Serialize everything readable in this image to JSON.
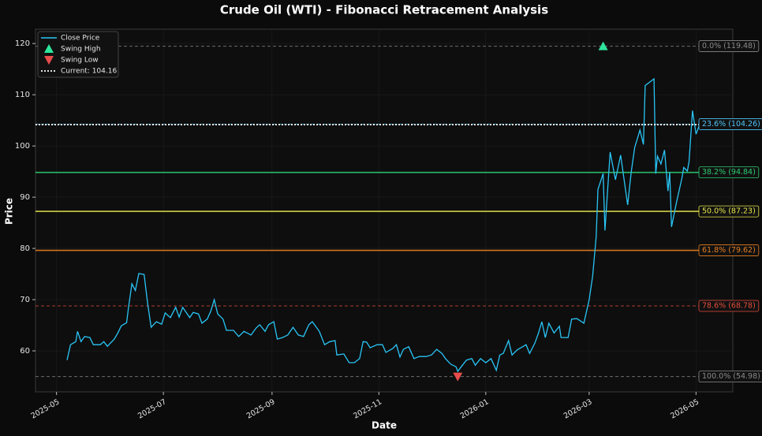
{
  "chart_data": {
    "type": "line",
    "title": "Crude Oil (WTI) - Fibonacci Retracement Analysis",
    "x_label": "Date",
    "y_label": "Price",
    "x": [
      "2025-05-07",
      "2025-05-09",
      "2025-05-12",
      "2025-05-13",
      "2025-05-15",
      "2025-05-17",
      "2025-05-20",
      "2025-05-22",
      "2025-05-26",
      "2025-05-28",
      "2025-05-30",
      "2025-06-03",
      "2025-06-05",
      "2025-06-07",
      "2025-06-10",
      "2025-06-11",
      "2025-06-13",
      "2025-06-15",
      "2025-06-17",
      "2025-06-20",
      "2025-06-22",
      "2025-06-24",
      "2025-06-27",
      "2025-06-30",
      "2025-07-02",
      "2025-07-05",
      "2025-07-08",
      "2025-07-10",
      "2025-07-12",
      "2025-07-16",
      "2025-07-18",
      "2025-07-21",
      "2025-07-23",
      "2025-07-26",
      "2025-07-28",
      "2025-07-30",
      "2025-08-01",
      "2025-08-04",
      "2025-08-06",
      "2025-08-10",
      "2025-08-13",
      "2025-08-16",
      "2025-08-20",
      "2025-08-23",
      "2025-08-25",
      "2025-08-28",
      "2025-08-30",
      "2025-09-02",
      "2025-09-04",
      "2025-09-07",
      "2025-09-10",
      "2025-09-13",
      "2025-09-16",
      "2025-09-19",
      "2025-09-22",
      "2025-09-24",
      "2025-09-28",
      "2025-10-01",
      "2025-10-04",
      "2025-10-07",
      "2025-10-08",
      "2025-10-12",
      "2025-10-15",
      "2025-10-18",
      "2025-10-21",
      "2025-10-23",
      "2025-10-25",
      "2025-10-27",
      "2025-10-31",
      "2025-11-03",
      "2025-11-05",
      "2025-11-09",
      "2025-11-11",
      "2025-11-13",
      "2025-11-15",
      "2025-11-18",
      "2025-11-21",
      "2025-11-24",
      "2025-11-28",
      "2025-12-01",
      "2025-12-04",
      "2025-12-07",
      "2025-12-09",
      "2025-12-12",
      "2025-12-15",
      "2025-12-16",
      "2025-12-18",
      "2025-12-21",
      "2025-12-24",
      "2025-12-26",
      "2025-12-29",
      "2026-01-01",
      "2026-01-04",
      "2026-01-07",
      "2026-01-09",
      "2026-01-11",
      "2026-01-14",
      "2026-01-16",
      "2026-01-19",
      "2026-01-22",
      "2026-01-24",
      "2026-01-26",
      "2026-01-29",
      "2026-01-31",
      "2026-02-02",
      "2026-02-04",
      "2026-02-06",
      "2026-02-09",
      "2026-02-12",
      "2026-02-13",
      "2026-02-17",
      "2026-02-19",
      "2026-02-22",
      "2026-02-26",
      "2026-03-01",
      "2026-03-03",
      "2026-03-05",
      "2026-03-06",
      "2026-03-09",
      "2026-03-10",
      "2026-03-13",
      "2026-03-16",
      "2026-03-19",
      "2026-03-23",
      "2026-03-25",
      "2026-03-27",
      "2026-03-30",
      "2026-04-01",
      "2026-04-02",
      "2026-04-07",
      "2026-04-08",
      "2026-04-09",
      "2026-04-11",
      "2026-04-13",
      "2026-04-15",
      "2026-04-16",
      "2026-04-17",
      "2026-04-20",
      "2026-04-23",
      "2026-04-24",
      "2026-04-26",
      "2026-04-27",
      "2026-04-29",
      "2026-05-01",
      "2026-05-03"
    ],
    "series": [
      {
        "name": "Close Price",
        "color": "#29c5f6",
        "values": [
          58.2,
          61.2,
          61.8,
          63.8,
          61.8,
          62.8,
          62.6,
          61.2,
          61.2,
          61.8,
          60.9,
          62.3,
          63.5,
          64.9,
          65.5,
          68.2,
          73.1,
          71.8,
          75.1,
          74.9,
          69.2,
          64.6,
          65.7,
          65.2,
          67.4,
          66.5,
          68.5,
          66.6,
          68.5,
          66.5,
          67.5,
          67.2,
          65.4,
          66.2,
          67.7,
          70.0,
          67.2,
          66.2,
          64.0,
          64.0,
          62.8,
          63.8,
          63.1,
          64.5,
          65.1,
          63.8,
          65.1,
          65.7,
          62.3,
          62.6,
          63.1,
          64.6,
          63.1,
          62.8,
          65.1,
          65.7,
          63.8,
          61.2,
          61.8,
          62.0,
          59.2,
          59.4,
          57.7,
          57.7,
          58.5,
          61.8,
          61.7,
          60.6,
          61.2,
          61.2,
          59.7,
          60.5,
          61.2,
          58.8,
          60.3,
          60.8,
          58.5,
          58.9,
          58.9,
          59.2,
          60.3,
          59.5,
          58.5,
          57.4,
          56.9,
          56.0,
          56.9,
          58.2,
          58.5,
          57.2,
          58.5,
          57.7,
          58.5,
          56.2,
          59.2,
          59.5,
          62.0,
          59.2,
          60.2,
          60.8,
          61.2,
          59.5,
          61.5,
          63.4,
          65.7,
          62.6,
          65.4,
          63.5,
          64.8,
          62.6,
          62.6,
          66.2,
          66.3,
          65.4,
          70.0,
          74.6,
          82.3,
          91.5,
          94.6,
          83.5,
          98.8,
          93.4,
          98.2,
          88.5,
          94.9,
          99.7,
          103.1,
          100.3,
          111.8,
          113.1,
          94.6,
          98.0,
          96.5,
          99.2,
          91.2,
          94.9,
          84.2,
          89.2,
          93.8,
          95.8,
          95.1,
          96.9,
          106.9,
          102.3,
          104.16
        ]
      }
    ],
    "markers": [
      {
        "name": "Swing High",
        "x": "2026-03-09",
        "value": 119.48,
        "color": "#2ee59d",
        "symbol": "triangle-up"
      },
      {
        "name": "Swing Low",
        "x": "2025-12-16",
        "value": 54.98,
        "color": "#e74c4c",
        "symbol": "triangle-down"
      }
    ],
    "current": {
      "name": "Current: 104.16",
      "value": 104.16,
      "color": "#ffffff"
    },
    "levels": [
      {
        "label": "0.0% (119.48)",
        "value": 119.48,
        "color": "#8a8a8a",
        "dashed": true
      },
      {
        "label": "23.6% (104.26)",
        "value": 104.26,
        "color": "#4fc3f7",
        "dashed": true
      },
      {
        "label": "38.2% (94.84)",
        "value": 94.84,
        "color": "#2ecc71",
        "dashed": false
      },
      {
        "label": "50.0% (87.23)",
        "value": 87.23,
        "color": "#e5e54a",
        "dashed": false
      },
      {
        "label": "61.8% (79.62)",
        "value": 79.62,
        "color": "#e67e22",
        "dashed": false
      },
      {
        "label": "78.6% (68.78)",
        "value": 68.78,
        "color": "#e74c3c",
        "dashed": true
      },
      {
        "label": "100.0% (54.98)",
        "value": 54.98,
        "color": "#8a8a8a",
        "dashed": true
      }
    ],
    "xlim": [
      "2025-04-19",
      "2026-05-22"
    ],
    "xticks": [
      {
        "value": "2025-05-01",
        "label": "2025-05"
      },
      {
        "value": "2025-07-01",
        "label": "2025-07"
      },
      {
        "value": "2025-09-01",
        "label": "2025-09"
      },
      {
        "value": "2025-11-01",
        "label": "2025-11"
      },
      {
        "value": "2026-01-01",
        "label": "2026-01"
      },
      {
        "value": "2026-03-01",
        "label": "2026-03"
      },
      {
        "value": "2026-05-01",
        "label": "2026-05"
      }
    ],
    "ylim": [
      52,
      122.8
    ],
    "yticks": [
      60,
      70,
      80,
      90,
      100,
      110,
      120
    ],
    "grid": true,
    "legend": "upper left"
  }
}
